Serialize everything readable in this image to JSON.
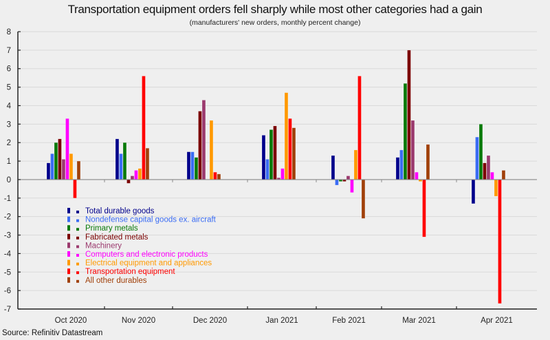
{
  "chart_data": {
    "type": "bar",
    "title": "Transportation equipment orders fell sharply while most other categories had a gain",
    "subtitle": "(manufacturers' new orders, monthly percent change)",
    "source": "Source: Refinitiv Datastream",
    "xlabel": "",
    "ylabel": "",
    "ylim": [
      -7,
      8
    ],
    "yticks": [
      8,
      7,
      6,
      5,
      4,
      3,
      2,
      1,
      0,
      -1,
      -2,
      -3,
      -4,
      -5,
      -6,
      -7
    ],
    "grid": true,
    "legend_position": "left-lower-inside",
    "categories": [
      "Oct 2020",
      "Nov 2020",
      "Dec 2020",
      "Jan 2021",
      "Feb 2021",
      "Mar 2021",
      "Apr 2021"
    ],
    "series": [
      {
        "name": "Total durable goods",
        "color": "#00008b",
        "values": [
          0.9,
          2.2,
          1.5,
          2.4,
          1.3,
          1.2,
          -1.3
        ]
      },
      {
        "name": "Nondefense capital goods ex. aircraft",
        "color": "#3a6cf4",
        "values": [
          1.4,
          1.4,
          1.5,
          1.1,
          -0.3,
          1.6,
          2.3
        ]
      },
      {
        "name": "Primary metals",
        "color": "#0a7a0a",
        "values": [
          2.0,
          2.0,
          1.2,
          2.7,
          -0.1,
          5.2,
          3.0
        ]
      },
      {
        "name": "Fabricated metals",
        "color": "#7b0000",
        "values": [
          2.2,
          -0.2,
          3.7,
          2.9,
          -0.1,
          7.0,
          0.9
        ]
      },
      {
        "name": "Machinery",
        "color": "#9b3a6e",
        "values": [
          1.1,
          0.2,
          4.3,
          0.1,
          0.2,
          3.2,
          1.3
        ]
      },
      {
        "name": "Computers and electronic products",
        "color": "#ff00ff",
        "values": [
          3.3,
          0.5,
          0.0,
          0.6,
          -0.7,
          0.4,
          0.4
        ]
      },
      {
        "name": "Electrical equipment and appliances",
        "color": "#ff9900",
        "values": [
          1.4,
          0.6,
          3.2,
          4.7,
          1.6,
          -0.1,
          -0.9
        ]
      },
      {
        "name": "Transportation equipment",
        "color": "#ff0000",
        "values": [
          -1.0,
          5.6,
          0.4,
          3.3,
          5.6,
          -3.1,
          -6.7
        ]
      },
      {
        "name": "All other durables",
        "color": "#a0400a",
        "values": [
          1.0,
          1.7,
          0.3,
          2.8,
          -2.1,
          1.9,
          0.5
        ]
      }
    ]
  }
}
